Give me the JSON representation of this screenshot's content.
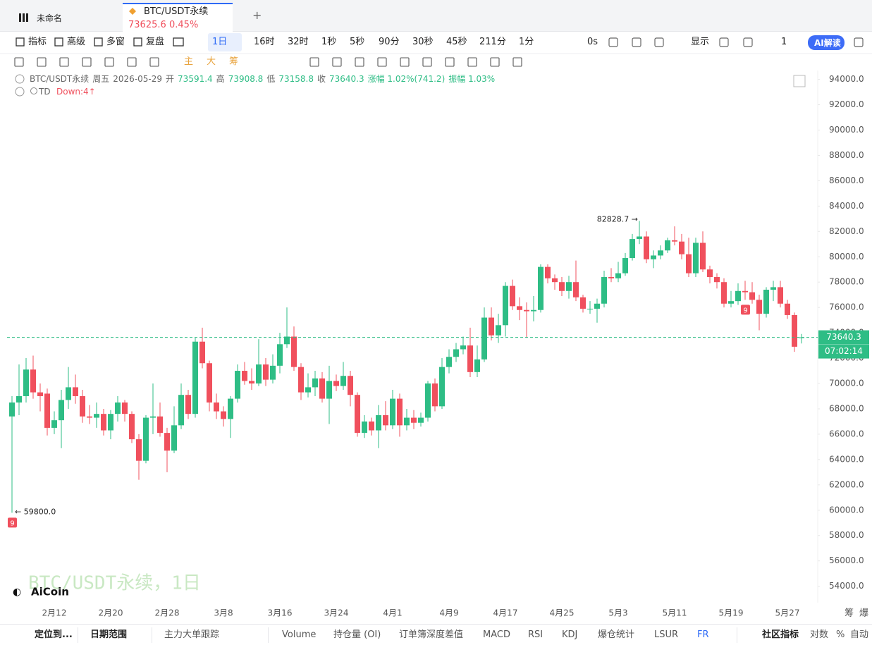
{
  "tabs": [
    {
      "label": "未命名"
    },
    {
      "label": "BTC/USDT永续",
      "price": "73625.6",
      "change": "0.45%"
    }
  ],
  "toolbar": {
    "left": [
      "指标",
      "高级",
      "多窗",
      "复盘"
    ],
    "intervals": [
      "1日",
      "16时",
      "32时",
      "1秒",
      "5秒",
      "90分",
      "30秒",
      "45秒",
      "211分",
      "1分"
    ],
    "right": [
      "0s",
      "显示",
      "1",
      "AI解读"
    ]
  },
  "drawing_tools": [
    "主",
    "大",
    "筹"
  ],
  "info": {
    "symbol": "BTC/USDT永续",
    "day": "周五",
    "date": "2026-05-29",
    "open_label": "开",
    "high_label": "高",
    "low_label": "低",
    "close_label": "收",
    "change": "涨幅 1.02%(741.2)",
    "amplitude": "振幅 1.03%",
    "indicator": "TD",
    "indicator_value": "Down:4↑"
  },
  "chart_data": {
    "type": "candlestick",
    "up_color": "#2ebd85",
    "down_color": "#f0505d",
    "grid": false,
    "categories": [
      null,
      null,
      null,
      null,
      null,
      null,
      "2月12",
      null,
      null,
      null,
      null,
      null,
      null,
      null,
      "2月20",
      null,
      null,
      null,
      null,
      null,
      null,
      null,
      "2月28",
      null,
      null,
      null,
      null,
      null,
      null,
      null,
      "3月8",
      null,
      null,
      null,
      null,
      null,
      null,
      null,
      "3月16",
      null,
      null,
      null,
      null,
      null,
      null,
      null,
      "3月24",
      null,
      null,
      null,
      null,
      null,
      null,
      null,
      "4月1",
      null,
      null,
      null,
      null,
      null,
      null,
      null,
      "4月9",
      null,
      null,
      null,
      null,
      null,
      null,
      null,
      "4月17",
      null,
      null,
      null,
      null,
      null,
      null,
      null,
      "4月25",
      null,
      null,
      null,
      null,
      null,
      null,
      null,
      "5月3",
      null,
      null,
      null,
      null,
      null,
      null,
      null,
      "5月11",
      null,
      null,
      null,
      null,
      null,
      null,
      null,
      "5月19",
      null,
      null,
      null,
      null,
      null,
      null,
      null,
      "5月27",
      null,
      null
    ],
    "open": [
      67400,
      68500,
      69000,
      71100,
      69300,
      69200,
      66500,
      67100,
      68700,
      69700,
      69000,
      67400,
      67300,
      67600,
      66300,
      67600,
      68500,
      67600,
      65600,
      63900,
      67300,
      67400,
      66100,
      64700,
      66700,
      69100,
      67600,
      73300,
      71600,
      68500,
      67800,
      67200,
      68800,
      71000,
      70200,
      70000,
      71500,
      70300,
      71400,
      73100,
      73700,
      71300,
      69300,
      69700,
      70400,
      68800,
      70200,
      69800,
      70600,
      69100,
      66100,
      67000,
      66300,
      67500,
      66700,
      68800,
      66700,
      67300,
      66900,
      67300,
      70000,
      68200,
      71300,
      72100,
      72700,
      73000,
      70900,
      71900,
      75200,
      73800,
      74600,
      77700,
      76100,
      75800,
      75700,
      75800,
      79200,
      78300,
      78000,
      77300,
      78000,
      76800,
      75900,
      75900,
      76300,
      78400,
      78300,
      78700,
      79900,
      81400,
      81600,
      79800,
      80100,
      80500,
      81300,
      81200,
      80200,
      78700,
      81100,
      79000,
      78400,
      78000,
      76300,
      76500,
      77300,
      77200,
      76600,
      75500,
      77400,
      77600,
      76300,
      75400,
      73591.4
    ],
    "high": [
      69000,
      71500,
      72000,
      72200,
      70000,
      69600,
      67800,
      69500,
      71300,
      70700,
      69500,
      68300,
      68500,
      68000,
      67900,
      69000,
      68700,
      67800,
      66000,
      67500,
      70000,
      68500,
      66500,
      68200,
      70000,
      69500,
      73600,
      74400,
      71800,
      69200,
      68200,
      69000,
      71500,
      71700,
      71200,
      73500,
      72000,
      72300,
      74000,
      76000,
      74500,
      71600,
      70800,
      71000,
      70900,
      71400,
      70700,
      71700,
      71000,
      69300,
      67500,
      67300,
      68300,
      68600,
      69500,
      69200,
      68000,
      67900,
      67700,
      70200,
      70400,
      72000,
      72700,
      73200,
      73700,
      74400,
      73000,
      76000,
      76000,
      75500,
      78000,
      78200,
      76800,
      76400,
      76900,
      79400,
      79400,
      78600,
      78400,
      78500,
      79700,
      77000,
      76500,
      76700,
      78900,
      79100,
      79600,
      80300,
      81800,
      82828.7,
      82000,
      80500,
      80900,
      81500,
      82400,
      81800,
      81500,
      81500,
      82000,
      79300,
      78700,
      78300,
      77300,
      77900,
      78100,
      78000,
      77000,
      77600,
      78100,
      78100,
      76600,
      75600,
      73908.8
    ],
    "low": [
      59800,
      67500,
      68500,
      68800,
      67800,
      65900,
      66000,
      64900,
      68000,
      68400,
      66900,
      66800,
      66500,
      65900,
      65600,
      67000,
      67000,
      65300,
      62400,
      63700,
      66000,
      65800,
      63000,
      64500,
      66400,
      67200,
      67300,
      71200,
      67800,
      67200,
      66600,
      65700,
      68500,
      69900,
      69500,
      69800,
      69800,
      70000,
      70800,
      72800,
      71000,
      68700,
      68900,
      69000,
      68500,
      66800,
      69400,
      69500,
      68200,
      65800,
      65700,
      65900,
      64900,
      66300,
      66400,
      65800,
      66300,
      66400,
      66600,
      67000,
      67800,
      68000,
      70800,
      71700,
      72300,
      70500,
      70500,
      71700,
      73400,
      73200,
      73700,
      75800,
      75000,
      73600,
      74900,
      75600,
      77900,
      77400,
      76900,
      76700,
      76500,
      75600,
      75500,
      74800,
      76000,
      78000,
      78000,
      78500,
      79700,
      81000,
      79500,
      79100,
      79800,
      80300,
      80900,
      79800,
      78400,
      78400,
      78800,
      77900,
      77500,
      76000,
      76000,
      76200,
      76600,
      76300,
      74200,
      75200,
      76500,
      76000,
      75100,
      72500,
      73158.8
    ],
    "close": [
      68500,
      69000,
      71100,
      69300,
      69000,
      66500,
      67100,
      68700,
      69700,
      69000,
      67400,
      67300,
      67600,
      66300,
      67600,
      68500,
      67600,
      65600,
      63900,
      67300,
      67400,
      66100,
      64700,
      66700,
      69100,
      67600,
      73300,
      71600,
      68500,
      67800,
      67200,
      68800,
      71000,
      70200,
      70000,
      71500,
      70300,
      71400,
      73100,
      73700,
      71300,
      69300,
      69700,
      70400,
      68800,
      70200,
      69800,
      70600,
      69100,
      66100,
      67000,
      66300,
      67500,
      66700,
      68800,
      66700,
      67300,
      66900,
      67300,
      70000,
      68200,
      71300,
      72100,
      72700,
      73000,
      70900,
      71900,
      75200,
      73800,
      74600,
      77700,
      76100,
      75800,
      75700,
      75800,
      79200,
      78300,
      78000,
      77300,
      78000,
      76800,
      75900,
      75900,
      76300,
      78400,
      78300,
      78700,
      79900,
      81400,
      81600,
      79800,
      80100,
      80500,
      81300,
      81200,
      80200,
      78700,
      81100,
      79000,
      78400,
      78000,
      76300,
      76500,
      77300,
      77200,
      76600,
      75500,
      77400,
      77600,
      76300,
      75400,
      72900,
      73640.3
    ],
    "ylim": [
      52700,
      94700
    ],
    "yticks": [
      {
        "value": 54000,
        "label": "54000.0"
      },
      {
        "value": 56000,
        "label": "56000.0"
      },
      {
        "value": 58000,
        "label": "58000.0"
      },
      {
        "value": 60000,
        "label": "60000.0"
      },
      {
        "value": 62000,
        "label": "62000.0"
      },
      {
        "value": 64000,
        "label": "64000.0"
      },
      {
        "value": 66000,
        "label": "66000.0"
      },
      {
        "value": 68000,
        "label": "68000.0"
      },
      {
        "value": 70000,
        "label": "70000.0"
      },
      {
        "value": 72000,
        "label": "72000.0"
      },
      {
        "value": 74000,
        "label": "74000.0"
      },
      {
        "value": 76000,
        "label": "76000.0"
      },
      {
        "value": 78000,
        "label": "78000.0"
      },
      {
        "value": 80000,
        "label": "80000.0"
      },
      {
        "value": 82000,
        "label": "82000.0"
      },
      {
        "value": 84000,
        "label": "84000.0"
      },
      {
        "value": 86000,
        "label": "86000.0"
      },
      {
        "value": 88000,
        "label": "88000.0"
      },
      {
        "value": 90000,
        "label": "90000.0"
      },
      {
        "value": 92000,
        "label": "92000.0"
      },
      {
        "value": 94000,
        "label": "94000.0"
      }
    ],
    "timer": "07:02:14",
    "annotations": [
      {
        "index": 89,
        "label": "82828.7 →"
      },
      {
        "index": 0,
        "label": "← 59800.0"
      }
    ],
    "td_marks": [
      {
        "index": 0,
        "label": "9"
      },
      {
        "index": 104,
        "label": "9"
      }
    ],
    "watermark": "BTC/USDT永续，1日"
  },
  "logo": "AiCoin",
  "corner": [
    "筹",
    "爆"
  ],
  "bottom_bar": [
    "定位到...",
    "日期范围",
    "主力大单跟踪",
    "Volume",
    "持仓量 (OI)",
    "订单簿深度差值",
    "MACD",
    "RSI",
    "KDJ",
    "爆仓统计",
    "LSUR",
    "FR",
    "社区指标",
    "对数",
    "%",
    "自动"
  ]
}
